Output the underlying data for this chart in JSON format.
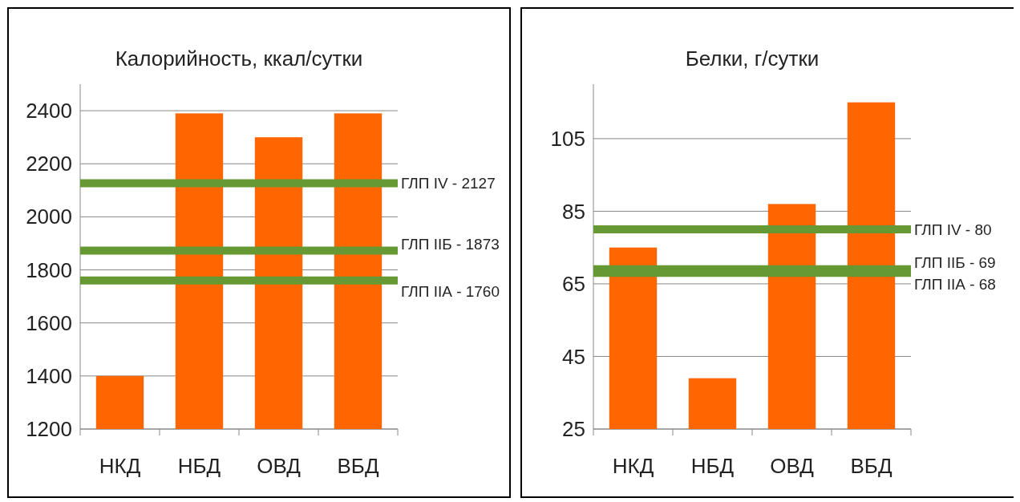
{
  "chart_data": [
    {
      "type": "bar",
      "title": "Калорийность, ккал/сутки",
      "categories": [
        "НКД",
        "НБД",
        "ОВД",
        "ВБД"
      ],
      "values": [
        1400,
        2390,
        2300,
        2390
      ],
      "color": "#ff6600",
      "ylim": [
        1200,
        2500
      ],
      "yticks": [
        1200,
        1400,
        1600,
        1800,
        2000,
        2200,
        2400
      ],
      "grid": "y",
      "ref_lines": [
        {
          "axis": "y",
          "value": 2127,
          "label": "ГЛП IV - 2127",
          "color": "#669933"
        },
        {
          "axis": "y",
          "value": 1873,
          "label": "ГЛП IIБ - 1873",
          "color": "#669933"
        },
        {
          "axis": "y",
          "value": 1760,
          "label": "ГЛП IIА - 1760",
          "color": "#669933"
        }
      ]
    },
    {
      "type": "bar",
      "title": "Белки, г/сутки",
      "categories": [
        "НКД",
        "НБД",
        "ОВД",
        "ВБД"
      ],
      "values": [
        75,
        39,
        87,
        115
      ],
      "color": "#ff6600",
      "ylim": [
        25,
        120
      ],
      "yticks": [
        25,
        45,
        65,
        85,
        105
      ],
      "grid": "y",
      "ref_lines": [
        {
          "axis": "y",
          "value": 80,
          "label": "ГЛП IV - 80",
          "color": "#669933"
        },
        {
          "axis": "y",
          "value": 69,
          "label": "ГЛП IIБ - 69",
          "color": "#669933"
        },
        {
          "axis": "y",
          "value": 68,
          "label": "ГЛП IIА - 68",
          "color": "#669933"
        }
      ]
    }
  ]
}
